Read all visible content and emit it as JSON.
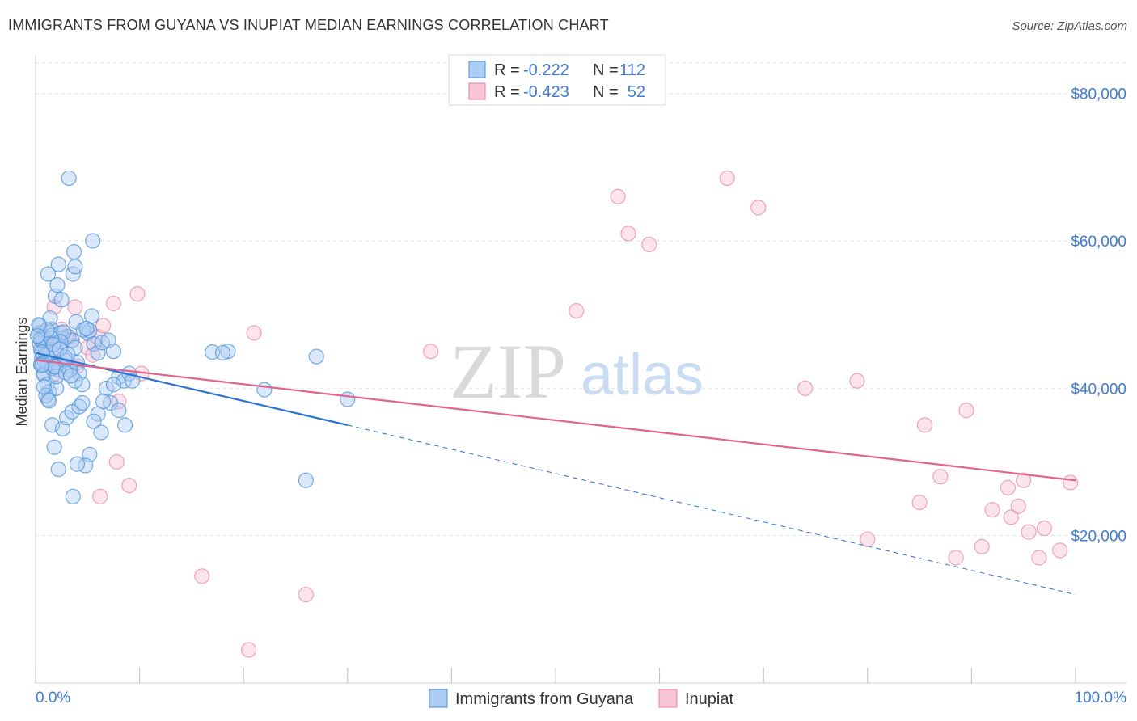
{
  "title": "IMMIGRANTS FROM GUYANA VS INUPIAT MEDIAN EARNINGS CORRELATION CHART",
  "source": "Source: ZipAtlas.com",
  "watermark": {
    "zip": "ZIP",
    "atlas": "atlas"
  },
  "colors": {
    "blue": "#4a90d9",
    "blue_fill": "#aecdf2",
    "blue_line": "#2a73d0",
    "pink": "#e87fa3",
    "pink_fill": "#f7c4d5",
    "pink_line": "#e0658f",
    "axis_text": "#3d7bd4",
    "grid": "#e3e3e3"
  },
  "legend": {
    "rows": [
      {
        "r_label": "R =",
        "r_value": "-0.222",
        "n_label": "N =",
        "n_value": "112"
      },
      {
        "r_label": "R =",
        "r_value": "-0.423",
        "n_label": "N =",
        "n_value": "52"
      }
    ]
  },
  "chart_data": {
    "type": "scatter",
    "title": "IMMIGRANTS FROM GUYANA VS INUPIAT MEDIAN EARNINGS CORRELATION CHART",
    "xlabel": "",
    "ylabel": "Median Earnings",
    "xlim": [
      0,
      100
    ],
    "ylim": [
      0,
      85000
    ],
    "x_tick_labels": [
      "0.0%",
      "100.0%"
    ],
    "y_ticks": [
      20000,
      40000,
      60000,
      80000
    ],
    "y_tick_labels": [
      "$20,000",
      "$40,000",
      "$60,000",
      "$80,000"
    ],
    "grid": true,
    "legend_position": "top-center",
    "series": [
      {
        "name": "Immigrants from Guyana",
        "r": -0.222,
        "n": 112,
        "trend": {
          "x0": 0,
          "y0": 44800,
          "x1": 30,
          "y1": 35000,
          "dashed_to_x": 100,
          "dashed_to_y": 12000
        },
        "points": [
          [
            0.3,
            47500
          ],
          [
            0.4,
            46000
          ],
          [
            0.5,
            45200
          ],
          [
            0.6,
            44000
          ],
          [
            0.5,
            43200
          ],
          [
            0.8,
            42000
          ],
          [
            0.4,
            48500
          ],
          [
            0.6,
            47000
          ],
          [
            0.7,
            46500
          ],
          [
            0.9,
            45500
          ],
          [
            1.0,
            44500
          ],
          [
            1.2,
            43500
          ],
          [
            0.8,
            41800
          ],
          [
            1.1,
            40500
          ],
          [
            1.3,
            39500
          ],
          [
            1.2,
            38500
          ],
          [
            1.5,
            48000
          ],
          [
            1.6,
            47200
          ],
          [
            1.8,
            46000
          ],
          [
            2.0,
            45000
          ],
          [
            1.7,
            43000
          ],
          [
            2.2,
            42500
          ],
          [
            2.4,
            47500
          ],
          [
            2.6,
            46800
          ],
          [
            2.8,
            44200
          ],
          [
            3.0,
            43000
          ],
          [
            1.4,
            49500
          ],
          [
            1.9,
            52500
          ],
          [
            2.1,
            54000
          ],
          [
            1.2,
            55500
          ],
          [
            2.2,
            56800
          ],
          [
            2.5,
            52000
          ],
          [
            3.2,
            47000
          ],
          [
            3.5,
            46500
          ],
          [
            3.8,
            45500
          ],
          [
            4.0,
            43500
          ],
          [
            4.2,
            42000
          ],
          [
            4.5,
            40500
          ],
          [
            3.6,
            55500
          ],
          [
            3.8,
            56500
          ],
          [
            3.7,
            58500
          ],
          [
            5.5,
            60000
          ],
          [
            3.2,
            68500
          ],
          [
            5.0,
            47500
          ],
          [
            5.2,
            47800
          ],
          [
            5.6,
            46000
          ],
          [
            6.0,
            44800
          ],
          [
            6.4,
            46200
          ],
          [
            7.0,
            46500
          ],
          [
            7.5,
            45000
          ],
          [
            8.0,
            41500
          ],
          [
            8.5,
            41000
          ],
          [
            6.8,
            40000
          ],
          [
            7.2,
            38000
          ],
          [
            8.0,
            37000
          ],
          [
            8.6,
            35000
          ],
          [
            9.0,
            42000
          ],
          [
            9.3,
            41000
          ],
          [
            7.5,
            40500
          ],
          [
            6.5,
            38200
          ],
          [
            6.0,
            36500
          ],
          [
            5.6,
            35500
          ],
          [
            5.2,
            31000
          ],
          [
            4.8,
            29500
          ],
          [
            4.0,
            29700
          ],
          [
            2.2,
            29000
          ],
          [
            1.8,
            32000
          ],
          [
            1.6,
            35000
          ],
          [
            2.6,
            34500
          ],
          [
            3.0,
            36000
          ],
          [
            3.5,
            36800
          ],
          [
            4.2,
            37500
          ],
          [
            4.5,
            38000
          ],
          [
            3.8,
            41000
          ],
          [
            3.3,
            42500
          ],
          [
            2.8,
            43800
          ],
          [
            2.0,
            40000
          ],
          [
            1.0,
            39000
          ],
          [
            1.3,
            38300
          ],
          [
            0.9,
            43600
          ],
          [
            0.5,
            46600
          ],
          [
            0.6,
            44900
          ],
          [
            0.7,
            43300
          ],
          [
            1.6,
            42700
          ],
          [
            2.0,
            41600
          ],
          [
            3.6,
            25300
          ],
          [
            6.3,
            34000
          ],
          [
            3.9,
            49000
          ],
          [
            5.4,
            49800
          ],
          [
            17.0,
            44900
          ],
          [
            18.5,
            45000
          ],
          [
            18.0,
            44800
          ],
          [
            22.0,
            39800
          ],
          [
            26.0,
            27500
          ],
          [
            27.0,
            44300
          ],
          [
            30.0,
            38500
          ],
          [
            4.6,
            47900
          ],
          [
            4.9,
            48100
          ],
          [
            2.7,
            47600
          ],
          [
            2.4,
            46300
          ],
          [
            1.5,
            46800
          ],
          [
            1.1,
            47900
          ],
          [
            0.3,
            48600
          ],
          [
            0.2,
            47100
          ],
          [
            0.6,
            43100
          ],
          [
            1.9,
            42900
          ],
          [
            2.9,
            42100
          ],
          [
            3.4,
            41700
          ],
          [
            1.7,
            45900
          ],
          [
            2.3,
            45300
          ],
          [
            3.1,
            44600
          ],
          [
            0.8,
            40200
          ]
        ]
      },
      {
        "name": "Inupiat",
        "r": -0.423,
        "n": 52,
        "trend": {
          "x0": 0,
          "y0": 43800,
          "x1": 100,
          "y1": 27500
        },
        "points": [
          [
            0.5,
            47500
          ],
          [
            1.0,
            46000
          ],
          [
            1.5,
            45000
          ],
          [
            2.0,
            44000
          ],
          [
            1.8,
            42000
          ],
          [
            2.5,
            48000
          ],
          [
            3.0,
            47000
          ],
          [
            3.5,
            46500
          ],
          [
            4.0,
            43000
          ],
          [
            5.0,
            45500
          ],
          [
            6.0,
            47000
          ],
          [
            6.5,
            48500
          ],
          [
            7.5,
            51500
          ],
          [
            9.8,
            52800
          ],
          [
            3.8,
            51000
          ],
          [
            1.8,
            51000
          ],
          [
            5.5,
            44500
          ],
          [
            8.0,
            38200
          ],
          [
            10.2,
            42000
          ],
          [
            7.8,
            30000
          ],
          [
            9.0,
            26800
          ],
          [
            6.2,
            25300
          ],
          [
            16.0,
            14500
          ],
          [
            20.5,
            4500
          ],
          [
            21.0,
            47500
          ],
          [
            26.0,
            12000
          ],
          [
            38.0,
            45000
          ],
          [
            52.0,
            50500
          ],
          [
            56.0,
            66000
          ],
          [
            57.0,
            61000
          ],
          [
            59.0,
            59500
          ],
          [
            66.5,
            68500
          ],
          [
            69.5,
            64500
          ],
          [
            74.0,
            40000
          ],
          [
            79.0,
            41000
          ],
          [
            85.5,
            35000
          ],
          [
            85.0,
            24500
          ],
          [
            87.0,
            28000
          ],
          [
            88.5,
            17000
          ],
          [
            89.5,
            37000
          ],
          [
            91.0,
            18500
          ],
          [
            92.0,
            23500
          ],
          [
            93.5,
            26500
          ],
          [
            93.8,
            22500
          ],
          [
            94.5,
            24000
          ],
          [
            95.0,
            27500
          ],
          [
            95.5,
            20500
          ],
          [
            96.5,
            17000
          ],
          [
            97.0,
            21000
          ],
          [
            98.5,
            18000
          ],
          [
            99.5,
            27200
          ],
          [
            80.0,
            19500
          ]
        ]
      }
    ]
  },
  "bottom_legend": [
    {
      "label": "Immigrants from Guyana"
    },
    {
      "label": "Inupiat"
    }
  ]
}
